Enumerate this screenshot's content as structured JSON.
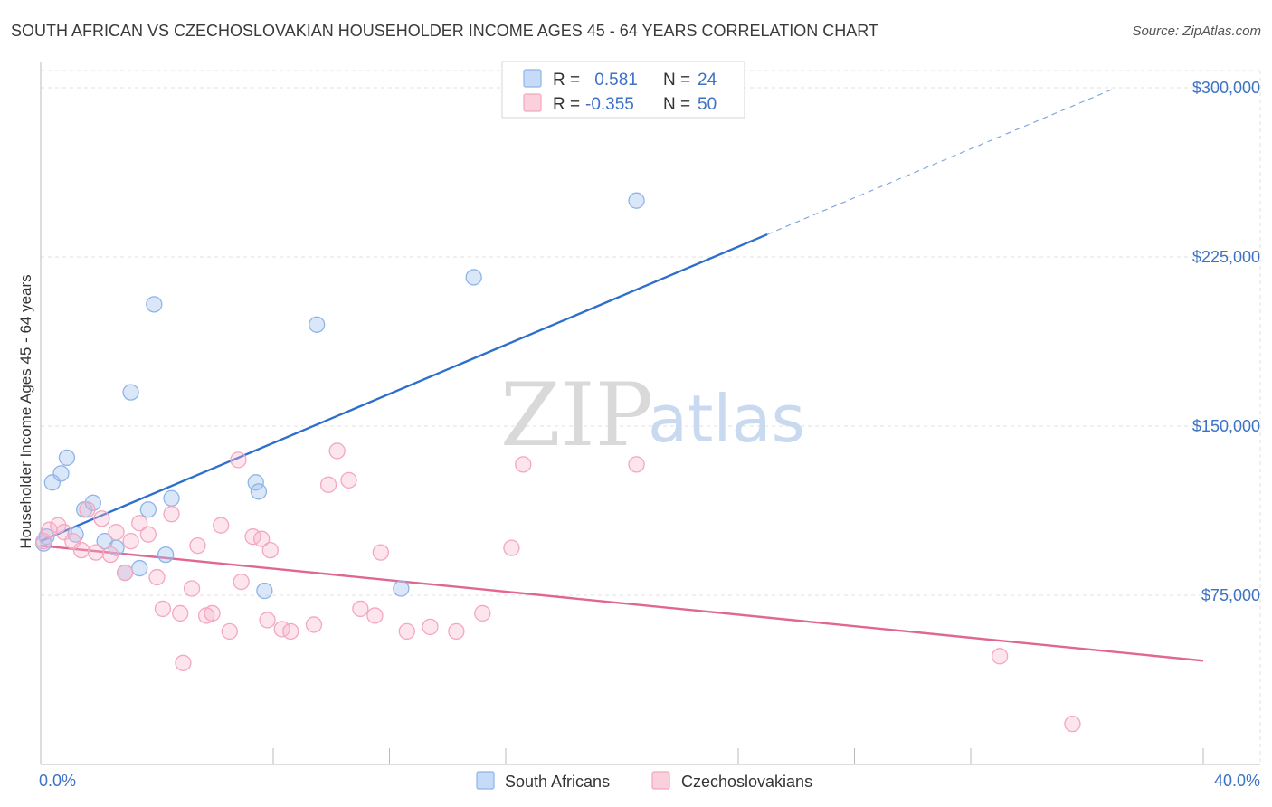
{
  "chart_data": {
    "type": "scatter",
    "title": "SOUTH AFRICAN VS CZECHOSLOVAKIAN HOUSEHOLDER INCOME AGES 45 - 64 YEARS CORRELATION CHART",
    "source": "Source: ZipAtlas.com",
    "ylabel": "Householder Income Ages 45 - 64 years",
    "xlabel": "",
    "xlim": [
      0,
      40
    ],
    "ylim": [
      0,
      310000
    ],
    "x_tick_labels": {
      "min": "0.0%",
      "max": "40.0%"
    },
    "y_ticks": [
      {
        "value": 75000,
        "label": "$75,000"
      },
      {
        "value": 150000,
        "label": "$150,000"
      },
      {
        "value": 225000,
        "label": "$225,000"
      },
      {
        "value": 300000,
        "label": "$300,000"
      }
    ],
    "grid": true,
    "legend_placement": "top-center",
    "watermark": {
      "zip": "ZIP",
      "atlas": "atlas"
    },
    "series": [
      {
        "name": "South Africans",
        "color": "#8fb4e8",
        "line_color": "#2e6fcc",
        "r_label": "R =",
        "r_value": " 0.581",
        "n_label": "N =",
        "n_value": "24",
        "trend": {
          "x0": 0.0,
          "y0": 99000,
          "x1": 25.0,
          "y1": 235000,
          "x_dash_end": 37.0,
          "y_dash_end": 300000
        },
        "points": [
          [
            0.2,
            101000
          ],
          [
            0.4,
            125000
          ],
          [
            0.7,
            129000
          ],
          [
            0.9,
            136000
          ],
          [
            1.2,
            102000
          ],
          [
            1.5,
            113000
          ],
          [
            1.8,
            116000
          ],
          [
            2.2,
            99000
          ],
          [
            2.6,
            96000
          ],
          [
            2.9,
            85000
          ],
          [
            3.1,
            165000
          ],
          [
            3.4,
            87000
          ],
          [
            3.7,
            113000
          ],
          [
            3.9,
            204000
          ],
          [
            4.3,
            93000
          ],
          [
            4.5,
            118000
          ],
          [
            7.4,
            125000
          ],
          [
            7.5,
            121000
          ],
          [
            7.7,
            77000
          ],
          [
            9.5,
            195000
          ],
          [
            12.4,
            78000
          ],
          [
            14.9,
            216000
          ],
          [
            20.5,
            250000
          ],
          [
            0.1,
            98000
          ]
        ]
      },
      {
        "name": "Czechoslovakians",
        "color": "#f4a7bf",
        "line_color": "#e06694",
        "r_label": "R =",
        "r_value": "-0.355",
        "n_label": "N =",
        "n_value": "50",
        "trend": {
          "x0": 0.0,
          "y0": 97000,
          "x1": 40.0,
          "y1": 46000
        },
        "points": [
          [
            0.1,
            99000
          ],
          [
            0.3,
            104000
          ],
          [
            0.6,
            106000
          ],
          [
            0.8,
            103000
          ],
          [
            1.1,
            99000
          ],
          [
            1.4,
            95000
          ],
          [
            1.6,
            113000
          ],
          [
            1.9,
            94000
          ],
          [
            2.1,
            109000
          ],
          [
            2.4,
            93000
          ],
          [
            2.6,
            103000
          ],
          [
            2.9,
            85000
          ],
          [
            3.1,
            99000
          ],
          [
            3.4,
            107000
          ],
          [
            3.7,
            102000
          ],
          [
            4.0,
            83000
          ],
          [
            4.2,
            69000
          ],
          [
            4.5,
            111000
          ],
          [
            4.8,
            67000
          ],
          [
            4.9,
            45000
          ],
          [
            5.2,
            78000
          ],
          [
            5.4,
            97000
          ],
          [
            5.7,
            66000
          ],
          [
            5.9,
            67000
          ],
          [
            6.2,
            106000
          ],
          [
            6.5,
            59000
          ],
          [
            6.8,
            135000
          ],
          [
            6.9,
            81000
          ],
          [
            7.3,
            101000
          ],
          [
            7.6,
            100000
          ],
          [
            7.8,
            64000
          ],
          [
            7.9,
            95000
          ],
          [
            8.3,
            60000
          ],
          [
            8.6,
            59000
          ],
          [
            9.4,
            62000
          ],
          [
            9.9,
            124000
          ],
          [
            10.2,
            139000
          ],
          [
            10.6,
            126000
          ],
          [
            11.0,
            69000
          ],
          [
            11.5,
            66000
          ],
          [
            11.7,
            94000
          ],
          [
            12.6,
            59000
          ],
          [
            13.4,
            61000
          ],
          [
            14.3,
            59000
          ],
          [
            15.2,
            67000
          ],
          [
            16.2,
            96000
          ],
          [
            16.6,
            133000
          ],
          [
            20.5,
            133000
          ],
          [
            33.0,
            48000
          ],
          [
            35.5,
            18000
          ]
        ]
      }
    ]
  }
}
